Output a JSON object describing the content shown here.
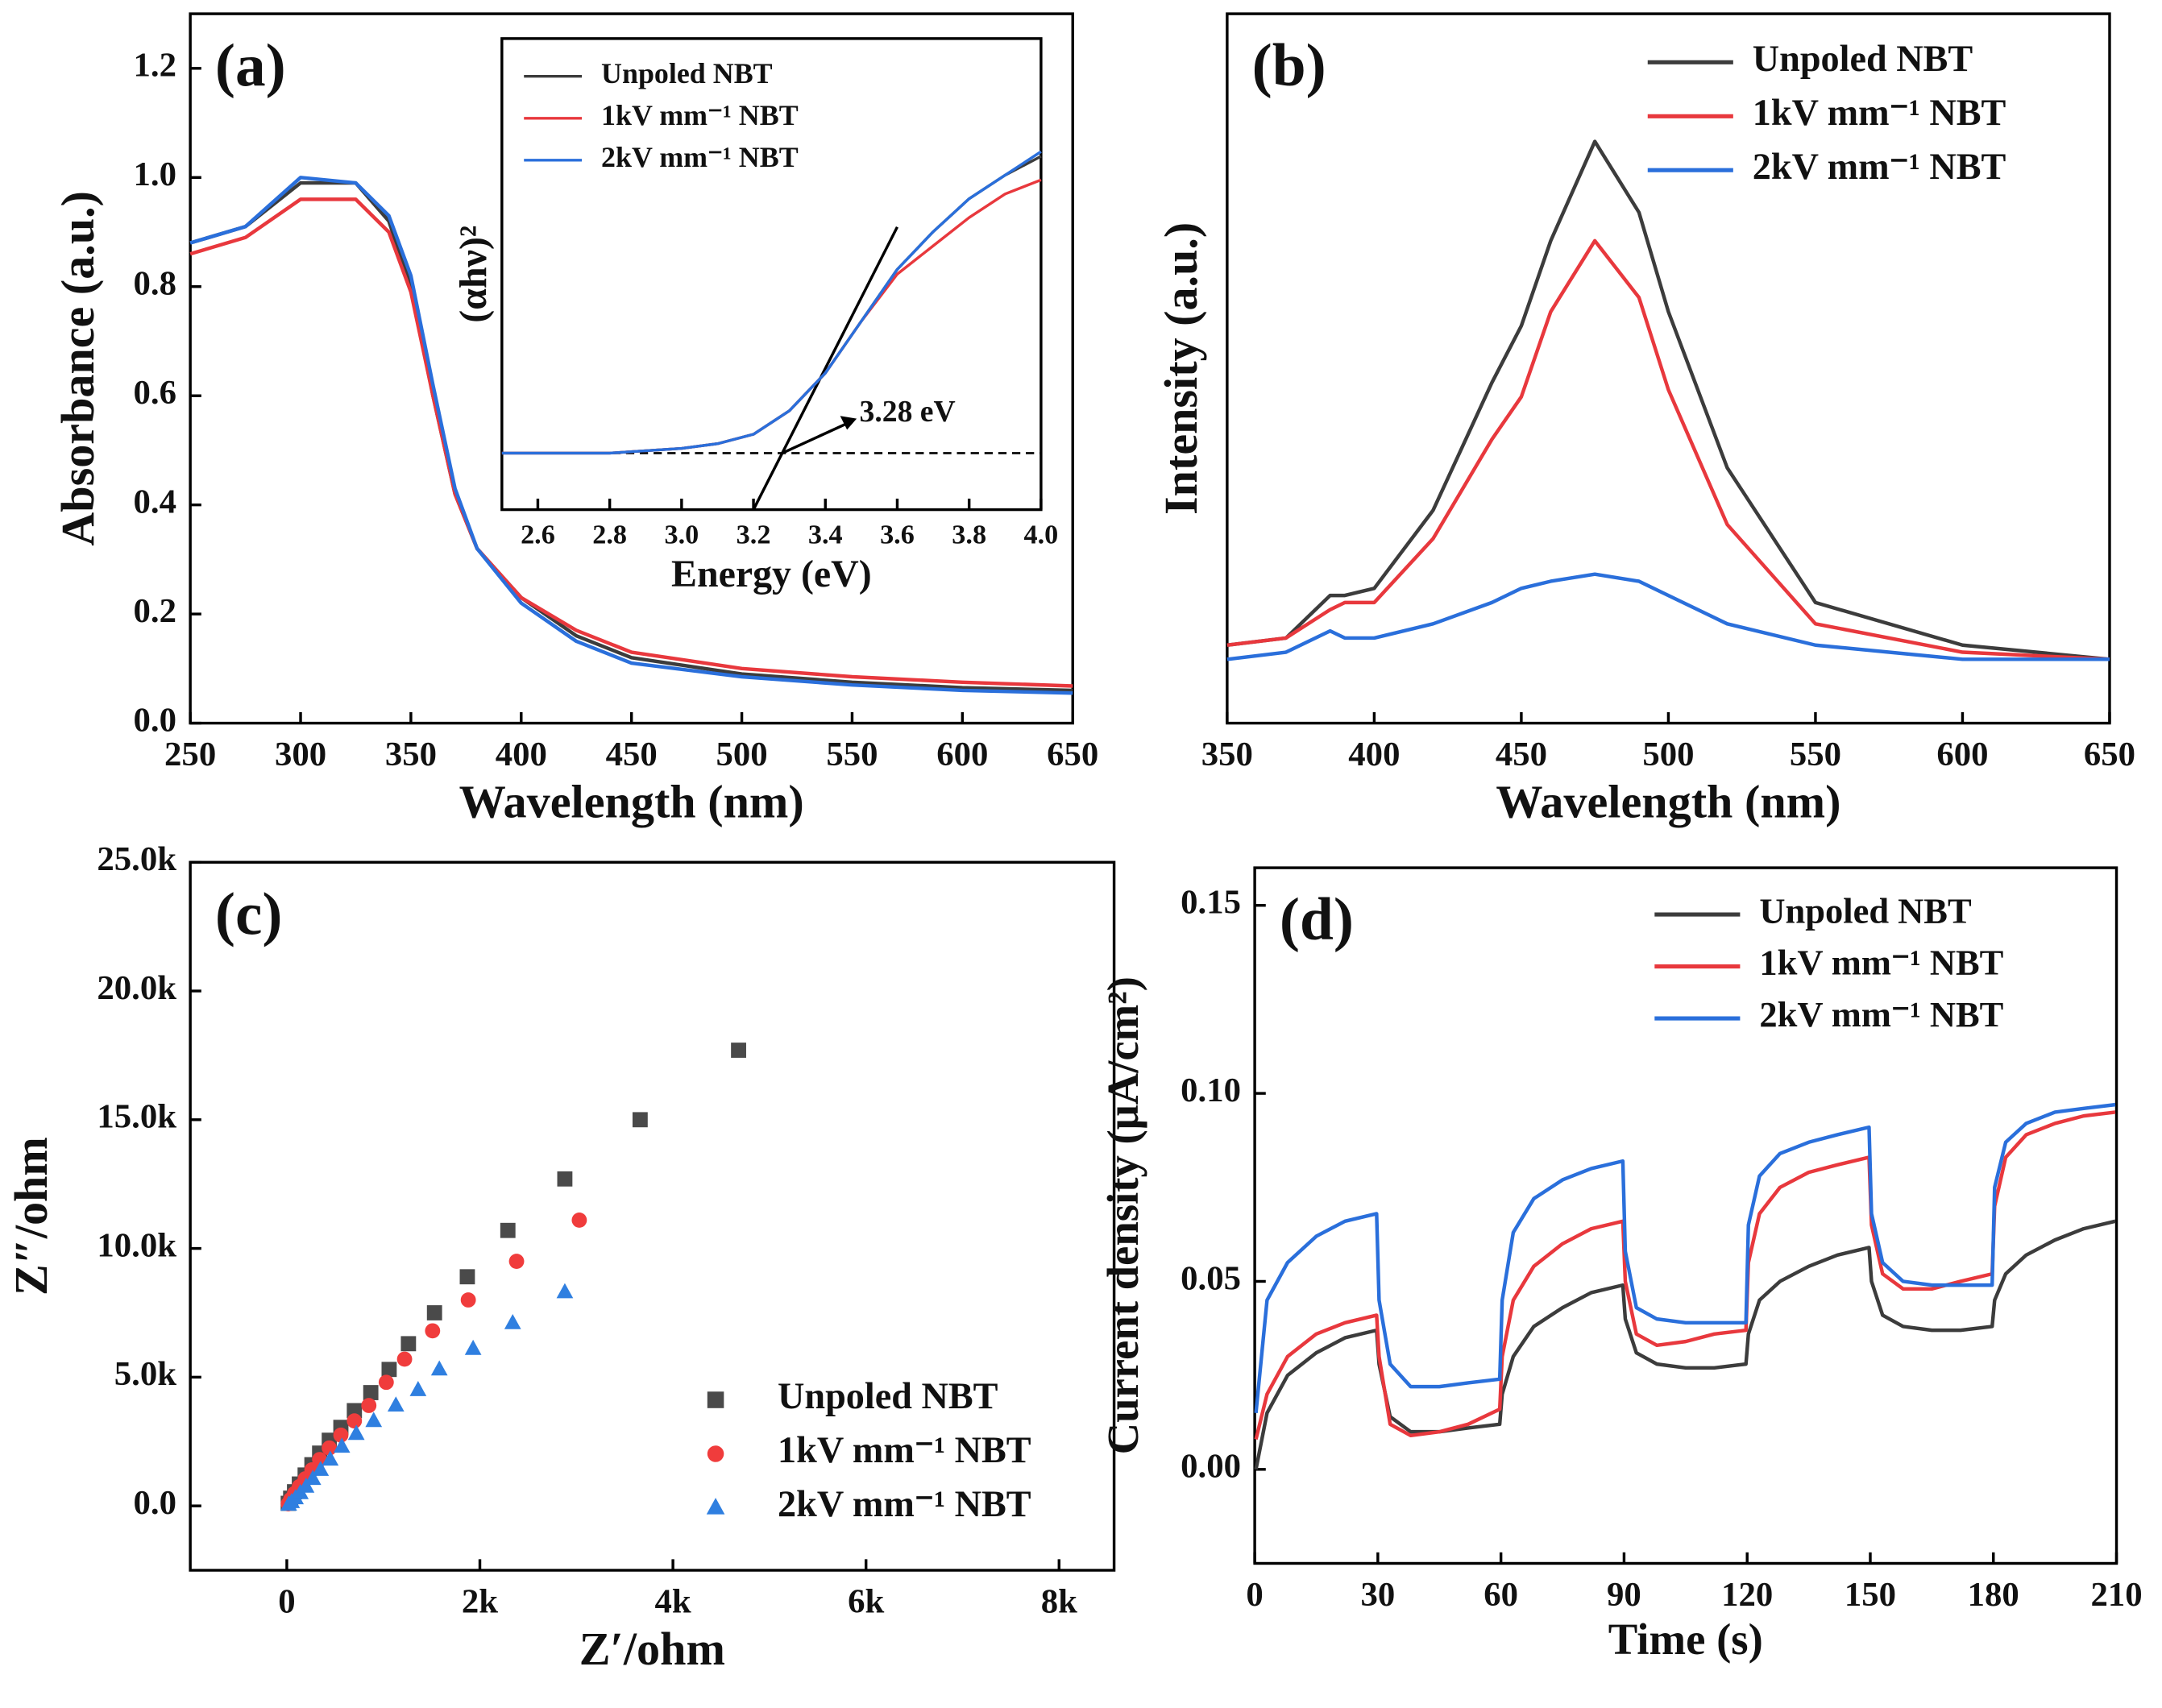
{
  "chart_data": [
    {
      "type": "line",
      "panel_label": "(a)",
      "xlabel": "Wavelength (nm)",
      "ylabel": "Absorbance (a.u.)",
      "xlim": [
        250,
        650
      ],
      "ylim": [
        0,
        1.3
      ],
      "xticks": [
        250,
        300,
        350,
        400,
        450,
        500,
        550,
        600,
        650
      ],
      "yticks": [
        {
          "value": 0,
          "label": "0.0"
        },
        0.2,
        0.4,
        0.6,
        0.8,
        {
          "value": 1,
          "label": "1.0"
        },
        1.2
      ],
      "x": [
        250,
        275,
        300,
        325,
        340,
        350,
        360,
        370,
        380,
        400,
        425,
        450,
        500,
        550,
        600,
        650
      ],
      "series": [
        {
          "color": "#3c3c3c",
          "values": [
            0.88,
            0.91,
            0.99,
            0.99,
            0.92,
            0.8,
            0.6,
            0.42,
            0.32,
            0.23,
            0.16,
            0.12,
            0.09,
            0.075,
            0.065,
            0.06
          ]
        },
        {
          "color": "#e8383d",
          "values": [
            0.86,
            0.89,
            0.96,
            0.96,
            0.9,
            0.79,
            0.6,
            0.42,
            0.32,
            0.23,
            0.17,
            0.13,
            0.1,
            0.085,
            0.075,
            0.068
          ]
        },
        {
          "color": "#2a6fdb",
          "values": [
            0.88,
            0.91,
            1.0,
            0.99,
            0.93,
            0.82,
            0.62,
            0.43,
            0.32,
            0.22,
            0.15,
            0.11,
            0.085,
            0.07,
            0.06,
            0.055
          ]
        }
      ]
    },
    {
      "type": "line",
      "xlabel": "Energy (eV)",
      "ylabel": "(αhν)²",
      "legend": "upper left",
      "xlim": [
        2.5,
        4.0
      ],
      "ylim": [
        0,
        1
      ],
      "xticks": [
        2.6,
        2.8,
        {
          "value": 3,
          "label": "3.0"
        },
        3.2,
        3.4,
        3.6,
        3.8,
        {
          "value": 4,
          "label": "4.0"
        }
      ],
      "x": [
        2.5,
        2.8,
        3.0,
        3.1,
        3.2,
        3.3,
        3.4,
        3.5,
        3.6,
        3.7,
        3.8,
        3.9,
        4.0
      ],
      "series": [
        {
          "name": "Unpoled NBT",
          "color": "#3c3c3c",
          "values": [
            0.12,
            0.12,
            0.13,
            0.14,
            0.16,
            0.21,
            0.29,
            0.4,
            0.51,
            0.59,
            0.66,
            0.71,
            0.75
          ]
        },
        {
          "name": "1kV mm⁻¹ NBT",
          "color": "#e8383d",
          "values": [
            0.12,
            0.12,
            0.13,
            0.14,
            0.16,
            0.21,
            0.29,
            0.4,
            0.5,
            0.56,
            0.62,
            0.67,
            0.7
          ]
        },
        {
          "name": "2kV mm⁻¹ NBT",
          "color": "#2a6fdb",
          "values": [
            0.12,
            0.12,
            0.13,
            0.14,
            0.16,
            0.21,
            0.29,
            0.4,
            0.51,
            0.59,
            0.66,
            0.71,
            0.76
          ]
        }
      ],
      "baseline": 0.12,
      "tangent": {
        "x": [
          3.2,
          3.6
        ],
        "y": [
          0,
          0.6
        ]
      },
      "annotations": [
        {
          "text": "3.28 eV",
          "x": 3.28,
          "y": 0.12
        }
      ]
    },
    {
      "type": "line",
      "panel_label": "(b)",
      "xlabel": "Wavelength (nm)",
      "ylabel": "Intensity (a.u.)",
      "legend": "upper right",
      "xlim": [
        350,
        650
      ],
      "ylim": [
        0,
        1
      ],
      "xticks": [
        350,
        400,
        450,
        500,
        550,
        600,
        650
      ],
      "x": [
        350,
        370,
        385,
        390,
        400,
        420,
        440,
        450,
        460,
        475,
        490,
        500,
        520,
        550,
        600,
        650
      ],
      "series": [
        {
          "name": "Unpoled NBT",
          "color": "#3c3c3c",
          "values": [
            0.11,
            0.12,
            0.18,
            0.18,
            0.19,
            0.3,
            0.48,
            0.56,
            0.68,
            0.82,
            0.72,
            0.58,
            0.36,
            0.17,
            0.11,
            0.09
          ]
        },
        {
          "name": "1kV mm⁻¹ NBT",
          "color": "#e8383d",
          "values": [
            0.11,
            0.12,
            0.16,
            0.17,
            0.17,
            0.26,
            0.4,
            0.46,
            0.58,
            0.68,
            0.6,
            0.47,
            0.28,
            0.14,
            0.1,
            0.09
          ]
        },
        {
          "name": "2kV mm⁻¹ NBT",
          "color": "#2a6fdb",
          "values": [
            0.09,
            0.1,
            0.13,
            0.12,
            0.12,
            0.14,
            0.17,
            0.19,
            0.2,
            0.21,
            0.2,
            0.18,
            0.14,
            0.11,
            0.09,
            0.09
          ]
        }
      ]
    },
    {
      "type": "scatter",
      "panel_label": "(c)",
      "xlabel": "Z′/ohm",
      "ylabel": "Z″/ohm",
      "legend": "lower right",
      "xlim": [
        -1000,
        8570
      ],
      "ylim": [
        -2500,
        25000
      ],
      "xticks": [
        0,
        {
          "value": 2000,
          "label": "2k"
        },
        {
          "value": 4000,
          "label": "4k"
        },
        {
          "value": 6000,
          "label": "6k"
        },
        {
          "value": 8000,
          "label": "8k"
        }
      ],
      "yticks": [
        {
          "value": 0,
          "label": "0.0"
        },
        {
          "value": 5000,
          "label": "5.0k"
        },
        {
          "value": 10000,
          "label": "10.0k"
        },
        {
          "value": 15000,
          "label": "15.0k"
        },
        {
          "value": 20000,
          "label": "20.0k"
        },
        {
          "value": 25000,
          "label": "25.0k"
        }
      ],
      "series": [
        {
          "name": "Unpoled NBT",
          "color": "#4a4a4a",
          "marker": "square",
          "x": [
            15,
            40,
            80,
            130,
            190,
            260,
            340,
            440,
            560,
            700,
            870,
            1060,
            1260,
            1530,
            1870,
            2290,
            2880,
            3660,
            4680
          ],
          "values": [
            100,
            300,
            550,
            850,
            1200,
            1600,
            2050,
            2550,
            3050,
            3700,
            4400,
            5300,
            6300,
            7500,
            8900,
            10700,
            12700,
            15000,
            17700
          ]
        },
        {
          "name": "1kV mm⁻¹ NBT",
          "color": "#f03c3c",
          "marker": "circle",
          "x": [
            15,
            40,
            80,
            130,
            190,
            260,
            340,
            440,
            560,
            700,
            850,
            1030,
            1220,
            1510,
            1880,
            2380,
            3030
          ],
          "values": [
            80,
            250,
            480,
            750,
            1050,
            1400,
            1800,
            2250,
            2750,
            3300,
            3900,
            4800,
            5700,
            6800,
            8000,
            9500,
            11100
          ]
        },
        {
          "name": "2kV mm⁻¹ NBT",
          "color": "#2f7fe0",
          "marker": "triangle",
          "x": [
            20,
            50,
            90,
            140,
            200,
            270,
            350,
            450,
            570,
            720,
            900,
            1130,
            1360,
            1580,
            1930,
            2340,
            2880
          ],
          "values": [
            50,
            150,
            300,
            500,
            750,
            1050,
            1400,
            1800,
            2300,
            2800,
            3300,
            3900,
            4500,
            5300,
            6100,
            7100,
            8300
          ]
        }
      ]
    },
    {
      "type": "line",
      "panel_label": "(d)",
      "xlabel": "Time (s)",
      "ylabel": "Current density (μA/cm²)",
      "legend": "upper right",
      "xlim": [
        0,
        210
      ],
      "ylim": [
        -0.025,
        0.16
      ],
      "xticks": [
        0,
        30,
        60,
        90,
        120,
        150,
        180,
        210
      ],
      "yticks": [
        {
          "value": 0,
          "label": "0.00"
        },
        0.05,
        {
          "value": 0.1,
          "label": "0.10"
        },
        0.15
      ],
      "x": [
        0.3,
        3,
        8,
        15,
        22,
        29.7,
        30.3,
        33,
        38,
        45,
        52,
        59.7,
        60.3,
        63,
        68,
        75,
        82,
        89.7,
        90.3,
        93,
        98,
        105,
        112,
        119.7,
        120.3,
        123,
        128,
        135,
        142,
        149.7,
        150.3,
        153,
        158,
        165,
        172,
        179.7,
        180.3,
        183,
        188,
        195,
        202,
        209.7
      ],
      "series": [
        {
          "name": "Unpoled NBT",
          "color": "#3c3c3c",
          "values": [
            0.0,
            0.015,
            0.025,
            0.031,
            0.035,
            0.037,
            0.028,
            0.014,
            0.01,
            0.01,
            0.011,
            0.012,
            0.02,
            0.03,
            0.038,
            0.043,
            0.047,
            0.049,
            0.04,
            0.031,
            0.028,
            0.027,
            0.027,
            0.028,
            0.036,
            0.045,
            0.05,
            0.054,
            0.057,
            0.059,
            0.05,
            0.041,
            0.038,
            0.037,
            0.037,
            0.038,
            0.045,
            0.052,
            0.057,
            0.061,
            0.064,
            0.066
          ]
        },
        {
          "name": "1kV mm⁻¹ NBT",
          "color": "#e8383d",
          "values": [
            0.008,
            0.02,
            0.03,
            0.036,
            0.039,
            0.041,
            0.03,
            0.012,
            0.009,
            0.01,
            0.012,
            0.016,
            0.03,
            0.045,
            0.054,
            0.06,
            0.064,
            0.066,
            0.05,
            0.036,
            0.033,
            0.034,
            0.036,
            0.037,
            0.055,
            0.068,
            0.075,
            0.079,
            0.081,
            0.083,
            0.065,
            0.052,
            0.048,
            0.048,
            0.05,
            0.052,
            0.07,
            0.083,
            0.089,
            0.092,
            0.094,
            0.095
          ]
        },
        {
          "name": "2kV mm⁻¹ NBT",
          "color": "#2a6fdb",
          "values": [
            0.015,
            0.045,
            0.055,
            0.062,
            0.066,
            0.068,
            0.045,
            0.028,
            0.022,
            0.022,
            0.023,
            0.024,
            0.045,
            0.063,
            0.072,
            0.077,
            0.08,
            0.082,
            0.058,
            0.043,
            0.04,
            0.039,
            0.039,
            0.039,
            0.065,
            0.078,
            0.084,
            0.087,
            0.089,
            0.091,
            0.068,
            0.055,
            0.05,
            0.049,
            0.049,
            0.049,
            0.075,
            0.087,
            0.092,
            0.095,
            0.096,
            0.097
          ]
        }
      ]
    }
  ]
}
